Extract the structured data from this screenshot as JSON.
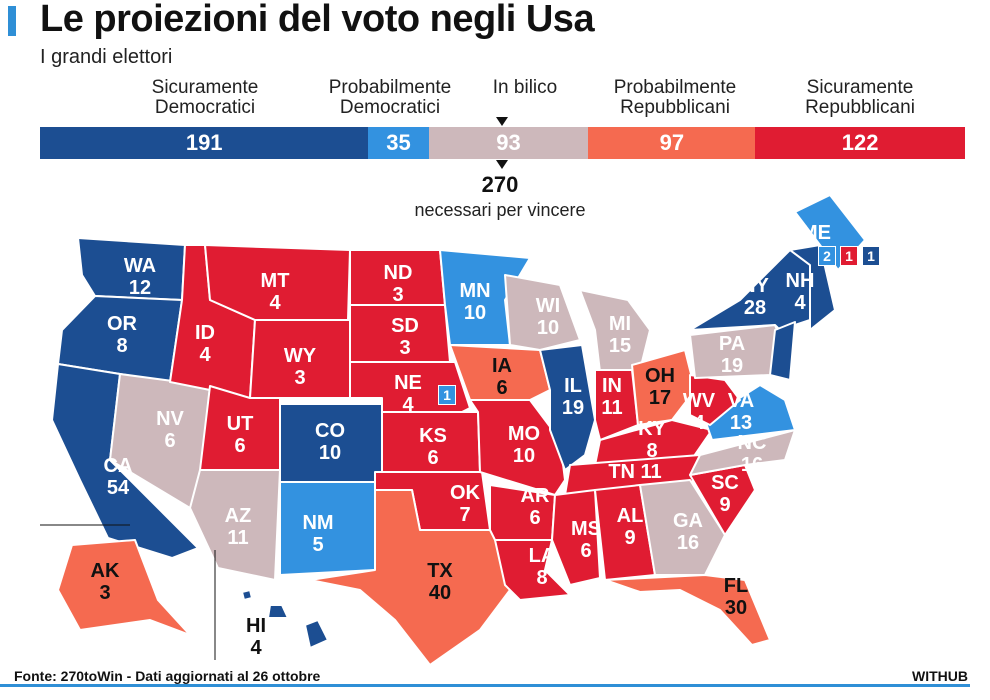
{
  "title": "Le proiezioni del voto negli Usa",
  "subtitle": "I grandi elettori",
  "colors": {
    "safe_dem": "#1c4e92",
    "lean_dem": "#3392e0",
    "tossup": "#cdb8bb",
    "lean_rep": "#f56a50",
    "safe_rep": "#e01c32"
  },
  "categories": [
    {
      "key": "safe_dem",
      "label_line1": "Sicuramente",
      "label_line2": "Democratici",
      "value": "191",
      "votes": 191
    },
    {
      "key": "lean_dem",
      "label_line1": "Probabilmente",
      "label_line2": "Democratici",
      "value": "35",
      "votes": 35
    },
    {
      "key": "tossup",
      "label_line1": "In bilico",
      "label_line2": "",
      "value": "93",
      "votes": 93
    },
    {
      "key": "lean_rep",
      "label_line1": "Probabilmente",
      "label_line2": "Repubblicani",
      "value": "97",
      "votes": 97
    },
    {
      "key": "safe_rep",
      "label_line1": "Sicuramente",
      "label_line2": "Repubblicani",
      "value": "122",
      "votes": 122
    }
  ],
  "threshold": {
    "value": "270",
    "label": "necessari per vincere"
  },
  "states": {
    "WA": {
      "votes": "12",
      "cat": "safe_dem"
    },
    "OR": {
      "votes": "8",
      "cat": "safe_dem"
    },
    "CA": {
      "votes": "54",
      "cat": "safe_dem"
    },
    "NV": {
      "votes": "6",
      "cat": "tossup"
    },
    "ID": {
      "votes": "4",
      "cat": "safe_rep"
    },
    "MT": {
      "votes": "4",
      "cat": "safe_rep"
    },
    "WY": {
      "votes": "3",
      "cat": "safe_rep"
    },
    "UT": {
      "votes": "6",
      "cat": "safe_rep"
    },
    "AZ": {
      "votes": "11",
      "cat": "tossup"
    },
    "CO": {
      "votes": "10",
      "cat": "safe_dem"
    },
    "NM": {
      "votes": "5",
      "cat": "lean_dem"
    },
    "ND": {
      "votes": "3",
      "cat": "safe_rep"
    },
    "SD": {
      "votes": "3",
      "cat": "safe_rep"
    },
    "NE": {
      "votes": "4",
      "cat": "safe_rep"
    },
    "KS": {
      "votes": "6",
      "cat": "safe_rep"
    },
    "OK": {
      "votes": "7",
      "cat": "safe_rep"
    },
    "TX": {
      "votes": "40",
      "cat": "lean_rep"
    },
    "MN": {
      "votes": "10",
      "cat": "lean_dem"
    },
    "IA": {
      "votes": "6",
      "cat": "lean_rep"
    },
    "MO": {
      "votes": "10",
      "cat": "safe_rep"
    },
    "AR": {
      "votes": "6",
      "cat": "safe_rep"
    },
    "LA": {
      "votes": "8",
      "cat": "safe_rep"
    },
    "WI": {
      "votes": "10",
      "cat": "tossup"
    },
    "IL": {
      "votes": "19",
      "cat": "safe_dem"
    },
    "MI": {
      "votes": "15",
      "cat": "tossup"
    },
    "IN": {
      "votes": "11",
      "cat": "safe_rep"
    },
    "OH": {
      "votes": "17",
      "cat": "lean_rep"
    },
    "KY": {
      "votes": "8",
      "cat": "safe_rep"
    },
    "TN": {
      "votes": "11",
      "cat": "safe_rep"
    },
    "MS": {
      "votes": "6",
      "cat": "safe_rep"
    },
    "AL": {
      "votes": "9",
      "cat": "safe_rep"
    },
    "GA": {
      "votes": "16",
      "cat": "tossup"
    },
    "FL": {
      "votes": "30",
      "cat": "lean_rep"
    },
    "SC": {
      "votes": "9",
      "cat": "safe_rep"
    },
    "NC": {
      "votes": "16",
      "cat": "tossup"
    },
    "VA": {
      "votes": "13",
      "cat": "lean_dem"
    },
    "WV": {
      "votes": "4",
      "cat": "safe_rep"
    },
    "PA": {
      "votes": "19",
      "cat": "tossup"
    },
    "NY": {
      "votes": "28",
      "cat": "safe_dem"
    },
    "NH": {
      "votes": "4",
      "cat": "safe_dem"
    },
    "ME": {
      "votes": "",
      "cat": "lean_dem"
    },
    "AK": {
      "votes": "3",
      "cat": "lean_rep"
    },
    "HI": {
      "votes": "4",
      "cat": "safe_dem"
    }
  },
  "district_boxes": {
    "ne_district": "1",
    "me_boxes": [
      "2",
      "1",
      "1"
    ]
  },
  "footer": {
    "source": "Fonte: 270toWin - Dati aggiornati al 26 ottobre",
    "brand": "WITHUB"
  }
}
